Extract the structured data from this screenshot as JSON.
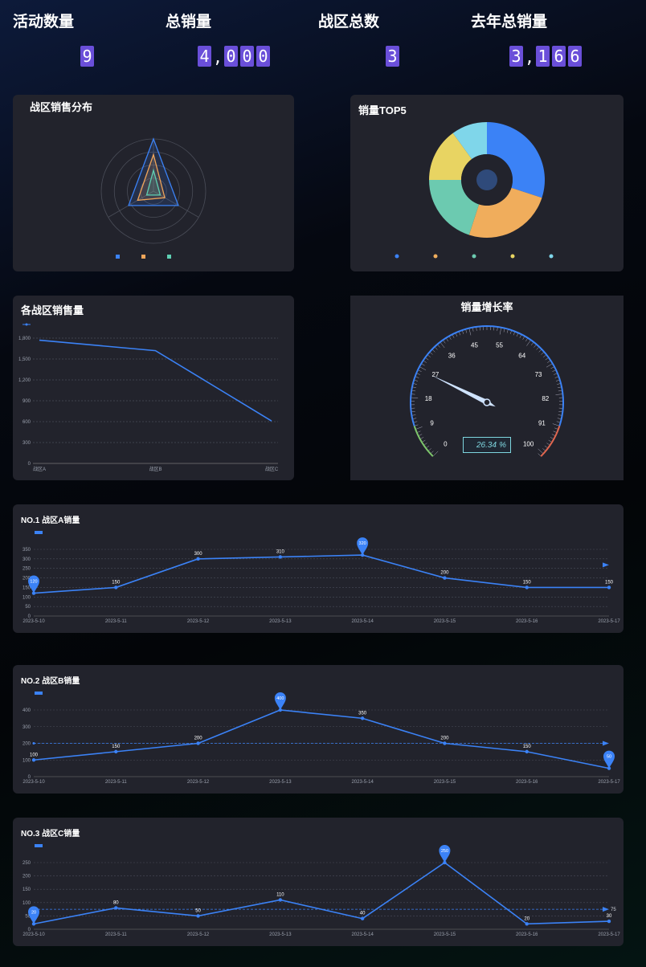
{
  "stats": [
    {
      "title": "活动数量",
      "value": "9"
    },
    {
      "title": "总销量",
      "value": "4,000"
    },
    {
      "title": "战区总数",
      "value": "3"
    },
    {
      "title": "去年总销量",
      "value": "3,166"
    }
  ],
  "radar": {
    "title": "战区销售分布",
    "indicators": [
      "",
      "",
      ""
    ],
    "legend": [
      "",
      "",
      ""
    ],
    "colors": [
      "#3b82f6",
      "#f0a55a",
      "#5ed0b3"
    ]
  },
  "pie": {
    "title": "销量TOP5",
    "legend": [
      "",
      "",
      "",
      "",
      ""
    ],
    "colors": [
      "#3b82f6",
      "#f0ad5c",
      "#6ccab0",
      "#e8d462",
      "#7fd6ea"
    ]
  },
  "line_main": {
    "title": "各战区销售量",
    "legend": ""
  },
  "gauge": {
    "title": "销量增长率",
    "ticks": [
      "0",
      "9",
      "18",
      "27",
      "36",
      "45",
      "55",
      "64",
      "73",
      "82",
      "91",
      "100"
    ],
    "value_text": "26.34",
    "unit": "%"
  },
  "zones": [
    {
      "title": "NO.1 战区A销量",
      "legend": "",
      "markline_label": ""
    },
    {
      "title": "NO.2 战区B销量",
      "legend": "",
      "markline_label": ""
    },
    {
      "title": "NO.3 战区C销量",
      "legend": "",
      "markline_label": ""
    }
  ],
  "chart_data": [
    {
      "type": "radar",
      "indicators": [
        "",
        "",
        ""
      ],
      "series": [
        {
          "values": [
            100,
            55,
            55
          ]
        },
        {
          "values": [
            70,
            35,
            25
          ]
        },
        {
          "values": [
            40,
            15,
            15
          ]
        }
      ],
      "max": 100
    },
    {
      "type": "pie",
      "donut": true,
      "values": [
        30,
        25,
        20,
        15,
        10
      ]
    },
    {
      "type": "line",
      "categories": [
        "战区A",
        "战区B",
        "战区C"
      ],
      "values": [
        1770,
        1620,
        610
      ],
      "ylim": [
        0,
        1800
      ],
      "yticks": [
        "0",
        "300",
        "600",
        "900",
        "1,200",
        "1,500",
        "1,800"
      ]
    },
    {
      "type": "gauge",
      "value": 26.34,
      "min": 0,
      "max": 100
    },
    {
      "type": "line",
      "categories": [
        "2023-5-10",
        "2023-5-11",
        "2023-5-12",
        "2023-5-13",
        "2023-5-14",
        "2023-5-15",
        "2023-5-16",
        "2023-5-17"
      ],
      "values": [
        120,
        150,
        300,
        310,
        320,
        200,
        150,
        150
      ],
      "data_labels": [
        "",
        "150",
        "300",
        "310",
        "",
        "200",
        "150",
        "150"
      ],
      "ylim": [
        0,
        350
      ],
      "yticks": [
        "0",
        "50",
        "100",
        "150",
        "200",
        "250",
        "300",
        "350"
      ],
      "mark_points": [
        {
          "index": 0,
          "label": "120"
        },
        {
          "index": 4,
          "label": "320"
        }
      ],
      "mark_line": null
    },
    {
      "type": "line",
      "categories": [
        "2023-5-10",
        "2023-5-11",
        "2023-5-12",
        "2023-5-13",
        "2023-5-14",
        "2023-5-15",
        "2023-5-16",
        "2023-5-17"
      ],
      "values": [
        100,
        150,
        200,
        400,
        350,
        200,
        150,
        50
      ],
      "data_labels": [
        "100",
        "150",
        "200",
        "",
        "350",
        "200",
        "150",
        ""
      ],
      "ylim": [
        0,
        400
      ],
      "yticks": [
        "0",
        "100",
        "200",
        "300",
        "400"
      ],
      "mark_points": [
        {
          "index": 3,
          "label": "400"
        },
        {
          "index": 7,
          "label": "50"
        }
      ],
      "mark_line": {
        "value": 200
      }
    },
    {
      "type": "line",
      "categories": [
        "2023-5-10",
        "2023-5-11",
        "2023-5-12",
        "2023-5-13",
        "2023-5-14",
        "2023-5-15",
        "2023-5-16",
        "2023-5-17"
      ],
      "values": [
        20,
        80,
        50,
        110,
        40,
        250,
        20,
        30
      ],
      "data_labels": [
        "",
        "80",
        "50",
        "110",
        "40",
        "",
        "20",
        "30"
      ],
      "ylim": [
        0,
        250
      ],
      "yticks": [
        "0",
        "50",
        "100",
        "150",
        "200",
        "250"
      ],
      "mark_points": [
        {
          "index": 0,
          "label": "20"
        },
        {
          "index": 5,
          "label": "250"
        }
      ],
      "mark_line": {
        "value": 75,
        "label": "75"
      }
    }
  ]
}
